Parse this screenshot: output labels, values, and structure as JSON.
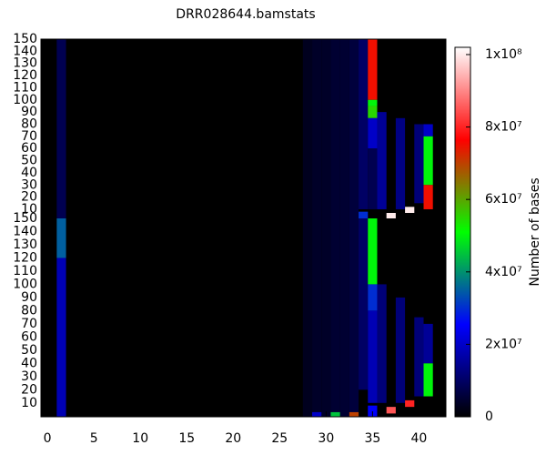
{
  "chart_data": {
    "type": "heatmap",
    "title": "DRR028644.bamstats",
    "xlim": [
      -0.7,
      42.9
    ],
    "xticks": [
      0,
      5,
      10,
      15,
      20,
      25,
      30,
      35,
      40
    ],
    "panels": [
      {
        "ylim": [
          2.5,
          150
        ],
        "yticks": [
          10,
          20,
          30,
          40,
          50,
          60,
          70,
          80,
          90,
          100,
          110,
          120,
          130,
          140,
          150
        ],
        "cells": [
          [
            1.5,
            2.5,
            150,
            8000000
          ],
          [
            28,
            2.5,
            150,
            3000000
          ],
          [
            29,
            2.5,
            150,
            4000000
          ],
          [
            30,
            2.5,
            150,
            4000000
          ],
          [
            31,
            2.5,
            150,
            5000000
          ],
          [
            32,
            2.5,
            150,
            5000000
          ],
          [
            33,
            2.5,
            150,
            6000000
          ],
          [
            34,
            10,
            150,
            10000000
          ],
          [
            34,
            2.5,
            8,
            30000000
          ],
          [
            35,
            100,
            150,
            75000000
          ],
          [
            35,
            95,
            100,
            50000000
          ],
          [
            35,
            85,
            95,
            55000000
          ],
          [
            35,
            60,
            85,
            20000000
          ],
          [
            35,
            10,
            60,
            8000000
          ],
          [
            36,
            10,
            90,
            15000000
          ],
          [
            37,
            2.5,
            7,
            100000000
          ],
          [
            38,
            10,
            85,
            13000000
          ],
          [
            39,
            7,
            12,
            100000000
          ],
          [
            40,
            15,
            80,
            12000000
          ],
          [
            41,
            70,
            80,
            20000000
          ],
          [
            41,
            30,
            70,
            50000000
          ],
          [
            41,
            10,
            30,
            75000000
          ]
        ]
      },
      {
        "ylim": [
          -0.5,
          150
        ],
        "yticks": [
          10,
          20,
          30,
          40,
          50,
          60,
          70,
          80,
          90,
          100,
          110,
          120,
          130,
          140,
          150
        ],
        "cells": [
          [
            1.5,
            120,
            150,
            35000000
          ],
          [
            1.5,
            -0.5,
            120,
            18000000
          ],
          [
            28,
            -0.5,
            150,
            3000000
          ],
          [
            29,
            -0.5,
            150,
            4000000
          ],
          [
            30,
            -0.5,
            150,
            4000000
          ],
          [
            31,
            -0.5,
            150,
            5000000
          ],
          [
            32,
            -0.5,
            150,
            5000000
          ],
          [
            33,
            -0.5,
            150,
            6000000
          ],
          [
            29,
            -0.5,
            3,
            20000000
          ],
          [
            31,
            -0.5,
            3,
            45000000
          ],
          [
            33,
            -0.5,
            3,
            70000000
          ],
          [
            34,
            20,
            150,
            10000000
          ],
          [
            35,
            100,
            150,
            50000000
          ],
          [
            35,
            80,
            100,
            30000000
          ],
          [
            35,
            10,
            80,
            18000000
          ],
          [
            35,
            -0.5,
            8,
            25000000
          ],
          [
            36,
            10,
            100,
            12000000
          ],
          [
            37,
            2,
            7,
            85000000
          ],
          [
            38,
            10,
            90,
            12000000
          ],
          [
            39,
            7,
            12,
            80000000
          ],
          [
            40,
            15,
            75,
            12000000
          ],
          [
            41,
            40,
            70,
            15000000
          ],
          [
            41,
            15,
            40,
            50000000
          ]
        ]
      }
    ],
    "colorbar": {
      "label": "Number of bases",
      "lim": [
        0,
        102000000
      ],
      "palette": [
        "#000000",
        "#0000ff",
        "#00ff00",
        "#ff0000",
        "#ffffff"
      ],
      "ticks": [
        {
          "value": 0,
          "label": "0"
        },
        {
          "value": 20000000,
          "label": "2x10⁷"
        },
        {
          "value": 40000000,
          "label": "4x10⁷"
        },
        {
          "value": 60000000,
          "label": "6x10⁷"
        },
        {
          "value": 80000000,
          "label": "8x10⁷"
        },
        {
          "value": 100000000,
          "label": "1x10⁸"
        }
      ]
    }
  }
}
